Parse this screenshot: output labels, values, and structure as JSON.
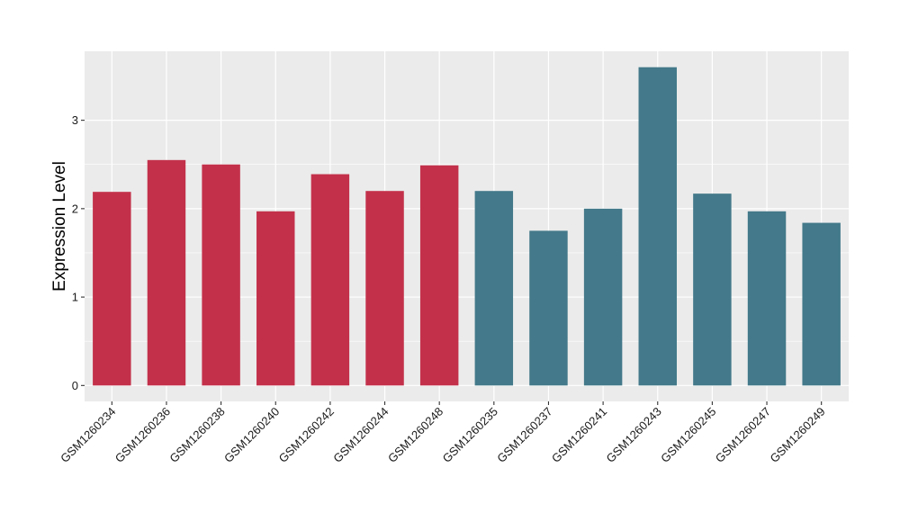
{
  "chart_data": {
    "type": "bar",
    "title": "",
    "xlabel": "",
    "ylabel": "Expression Level",
    "ylim": [
      -0.18,
      3.78
    ],
    "yticks": [
      0,
      1,
      2,
      3
    ],
    "grid": true,
    "legend": "none",
    "background": "#EBEBEB",
    "gridline_color": "#FFFFFF",
    "categories": [
      "GSM1260234",
      "GSM1260236",
      "GSM1260238",
      "GSM1260240",
      "GSM1260242",
      "GSM1260244",
      "GSM1260248",
      "GSM1260235",
      "GSM1260237",
      "GSM1260241",
      "GSM1260243",
      "GSM1260245",
      "GSM1260247",
      "GSM1260249"
    ],
    "values": [
      2.19,
      2.55,
      2.5,
      1.97,
      2.39,
      2.2,
      2.49,
      2.2,
      1.75,
      2.0,
      3.6,
      2.17,
      1.97,
      1.84
    ],
    "bar_colors": [
      "#C3304A",
      "#C3304A",
      "#C3304A",
      "#C3304A",
      "#C3304A",
      "#C3304A",
      "#C3304A",
      "#43798A",
      "#43798A",
      "#43798A",
      "#43798A",
      "#43798A",
      "#43798A",
      "#43798A"
    ]
  }
}
